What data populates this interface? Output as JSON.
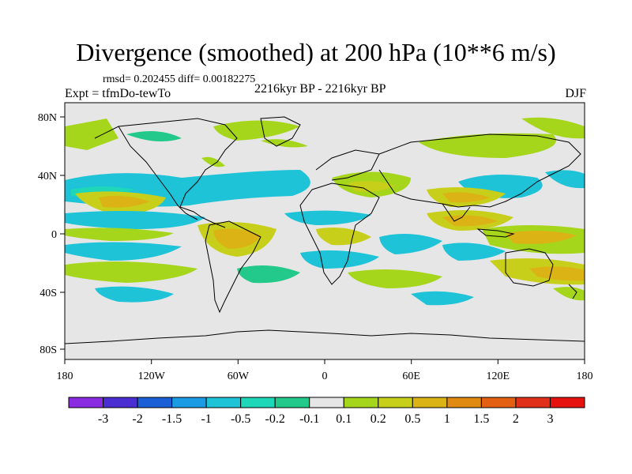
{
  "title": "Divergence (smoothed) at 200 hPa (10**6 m/s)",
  "stats": "rmsd= 0.202455 diff= 0.00182275",
  "experiment": "Expt = tfmDo-tewTo",
  "period": "2216kyr BP - 2216kyr BP",
  "season": "DJF",
  "x_ticks": [
    "180",
    "120W",
    "60W",
    "0",
    "60E",
    "120E",
    "180"
  ],
  "y_ticks": [
    "80N",
    "40N",
    "0",
    "40S",
    "80S"
  ],
  "colorbar": {
    "labels": [
      "-3",
      "-2",
      "-1.5",
      "-1",
      "-0.5",
      "-0.2",
      "-0.1",
      "0.1",
      "0.2",
      "0.5",
      "1",
      "1.5",
      "2",
      "3"
    ],
    "colors": [
      "#8a2be2",
      "#4b2ed1",
      "#1a5fd6",
      "#1a9be3",
      "#1fc3d8",
      "#1ed6b8",
      "#22c98a",
      "#e6e6e6",
      "#a6d61c",
      "#c8cf1a",
      "#dcb314",
      "#e08a12",
      "#e35f12",
      "#e0301a",
      "#e6120f"
    ]
  },
  "colors": {
    "ocean_background": "#e6e6e6",
    "coastline": "#000000"
  }
}
